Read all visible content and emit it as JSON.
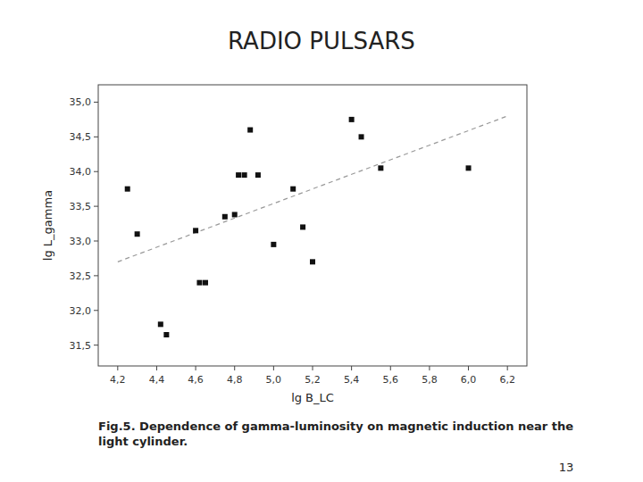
{
  "chart_data": {
    "type": "scatter",
    "title": "RADIO PULSARS",
    "xlabel": "lg B_LC",
    "ylabel": "lg L_gamma",
    "caption": "Fig.5. Dependence of gamma-luminosity on magnetic induction near the\nlight cylinder.",
    "page_number": "13",
    "xlim": [
      4.1,
      6.3
    ],
    "ylim": [
      31.2,
      35.25
    ],
    "xticks": [
      {
        "value": 4.2,
        "label": "4,2"
      },
      {
        "value": 4.4,
        "label": "4,4"
      },
      {
        "value": 4.6,
        "label": "4,6"
      },
      {
        "value": 4.8,
        "label": "4,8"
      },
      {
        "value": 5.0,
        "label": "5,0"
      },
      {
        "value": 5.2,
        "label": "5,2"
      },
      {
        "value": 5.4,
        "label": "5,4"
      },
      {
        "value": 5.6,
        "label": "5,6"
      },
      {
        "value": 5.8,
        "label": "5,8"
      },
      {
        "value": 6.0,
        "label": "6,0"
      },
      {
        "value": 6.2,
        "label": "6,2"
      }
    ],
    "yticks": [
      {
        "value": 31.5,
        "label": "31,5"
      },
      {
        "value": 32.0,
        "label": "32,0"
      },
      {
        "value": 32.5,
        "label": "32,5"
      },
      {
        "value": 33.0,
        "label": "33,0"
      },
      {
        "value": 33.5,
        "label": "33,5"
      },
      {
        "value": 34.0,
        "label": "34,0"
      },
      {
        "value": 34.5,
        "label": "34,5"
      },
      {
        "value": 35.0,
        "label": "35,0"
      }
    ],
    "series": [
      {
        "type": "scatter",
        "marker": "square",
        "color": "#111111",
        "x": [
          4.25,
          4.3,
          4.42,
          4.45,
          4.6,
          4.62,
          4.65,
          4.75,
          4.8,
          4.82,
          4.85,
          4.88,
          4.92,
          5.0,
          5.1,
          5.15,
          5.2,
          5.4,
          5.45,
          5.55,
          6.0
        ],
        "values": [
          33.75,
          33.1,
          31.8,
          31.65,
          33.15,
          32.4,
          32.4,
          33.35,
          33.38,
          33.95,
          33.95,
          34.6,
          33.95,
          32.95,
          33.75,
          33.2,
          32.7,
          34.75,
          34.5,
          34.05,
          34.05
        ]
      },
      {
        "type": "line",
        "line_style": "dashed",
        "color": "#999999",
        "x": [
          4.2,
          6.2
        ],
        "values": [
          32.7,
          34.8
        ]
      }
    ]
  }
}
